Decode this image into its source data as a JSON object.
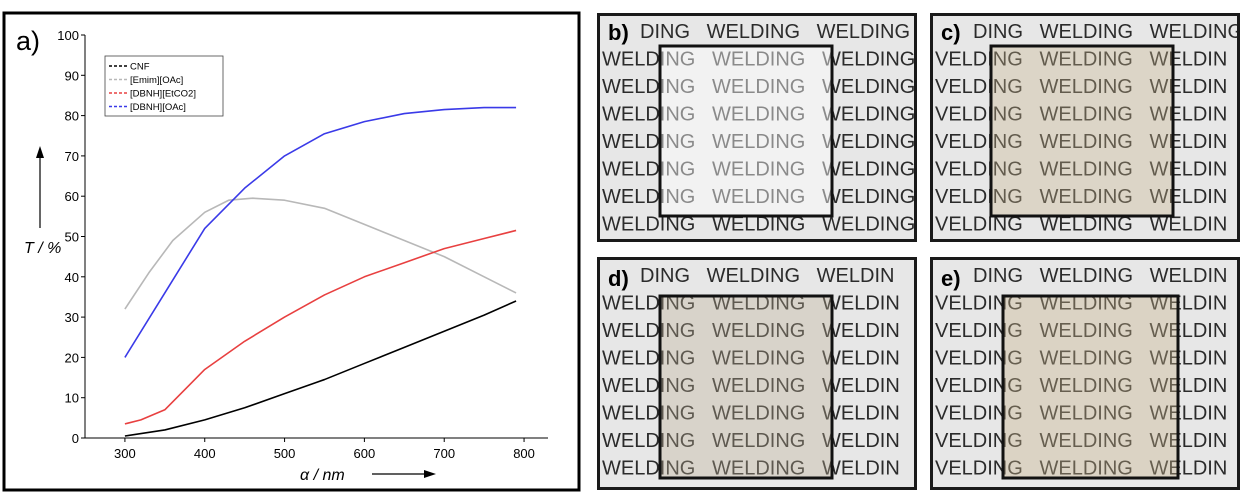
{
  "chart_data": {
    "type": "line",
    "panel_label": "a)",
    "xlabel": "α / nm",
    "ylabel": "T / %",
    "xlim": [
      250,
      830
    ],
    "ylim": [
      0,
      100
    ],
    "xticks": [
      "300",
      "400",
      "500",
      "600",
      "700",
      "800"
    ],
    "yticks": [
      "0",
      "10",
      "20",
      "30",
      "40",
      "50",
      "60",
      "70",
      "80",
      "90",
      "100"
    ],
    "legend_position": "top-left",
    "grid": false,
    "series": [
      {
        "name": "CNF",
        "color": "#000000",
        "x": [
          300,
          350,
          400,
          450,
          500,
          550,
          600,
          650,
          700,
          750,
          790
        ],
        "y": [
          0.5,
          2,
          4.5,
          7.5,
          11,
          14.5,
          18.5,
          22.5,
          26.5,
          30.5,
          34
        ]
      },
      {
        "name": "[Emim][OAc]",
        "color": "#b8b8b8",
        "x": [
          300,
          330,
          360,
          400,
          430,
          460,
          500,
          550,
          600,
          650,
          700,
          750,
          790
        ],
        "y": [
          32,
          41,
          49,
          56,
          59,
          59.5,
          59,
          57,
          53,
          49,
          45,
          40,
          36
        ]
      },
      {
        "name": "[DBNH][EtCO2]",
        "color": "#e84040",
        "x": [
          300,
          320,
          350,
          400,
          450,
          500,
          550,
          600,
          650,
          700,
          750,
          790
        ],
        "y": [
          3.5,
          4.5,
          7,
          17,
          24,
          30,
          35.5,
          40,
          43.5,
          47,
          49.5,
          51.5
        ]
      },
      {
        "name": "[DBNH][OAc]",
        "color": "#3a3ae8",
        "x": [
          300,
          350,
          400,
          450,
          500,
          550,
          600,
          650,
          700,
          750,
          790
        ],
        "y": [
          20,
          36,
          52,
          62,
          70,
          75.5,
          78.5,
          80.5,
          81.5,
          82,
          82
        ]
      }
    ]
  },
  "photos": [
    {
      "label": "b)",
      "rows": [
        "DING   WELDING   WELDING",
        "WELDING   WELDING   WELDING",
        "WELDING   WELDING   WELDING",
        "WELDING   WELDING   WELDING",
        "WELDING   WELDING   WELDING",
        "WELDING   WELDING   WELDING",
        "WELDING   WELDING   WELDING",
        "WELDING   WELDING   WELDING"
      ]
    },
    {
      "label": "c)",
      "rows": [
        "DING   WELDING   WELDING",
        "VELDING   WELDING   WELDIN",
        "VELDING   WELDING   WELDIN",
        "VELDING   WELDING   WELDIN",
        "VELDING   WELDING   WELDIN",
        "VELDING   WELDING   WELDIN",
        "VELDING   WELDING   WELDIN",
        "VELDING   WELDING   WELDIN"
      ]
    },
    {
      "label": "d)",
      "rows": [
        "DING   WELDING   WELDIN",
        "WELDING   WELDING   WELDIN",
        "WELDING   WELDING   WELDIN",
        "WELDING   WELDING   WELDIN",
        "WELDING   WELDING   WELDIN",
        "WELDING   WELDING   WELDIN",
        "WELDING   WELDING   WELDIN",
        "WELDING   WELDING   WELDIN"
      ]
    },
    {
      "label": "e)",
      "rows": [
        "DING   WELDING   WELDIN",
        "VELDING   WELDING   WELDIN",
        "VELDING   WELDING   WELDIN",
        "VELDING   WELDING   WELDIN",
        "VELDING   WELDING   WELDIN",
        "VELDING   WELDING   WELDIN",
        "VELDING   WELDING   WELDIN",
        "VELDING   WELDING   WELDIN"
      ]
    }
  ]
}
